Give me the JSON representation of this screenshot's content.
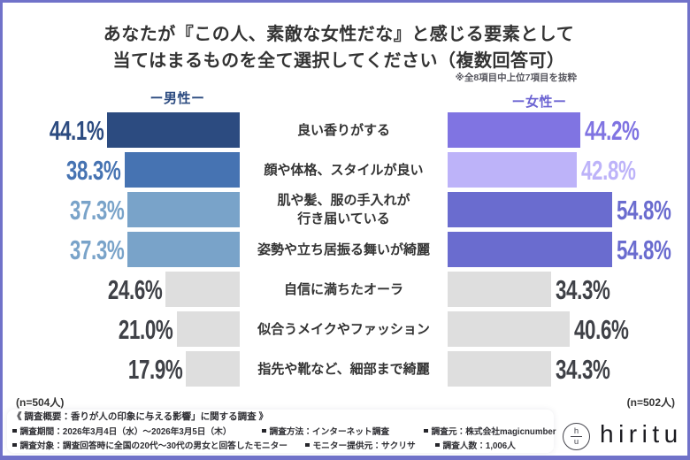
{
  "frame": {
    "border_color": "#7072C9"
  },
  "title": {
    "lines": [
      "あなたが『この人、素敵な女性だな』と感じる要素として",
      "当てはまるものを全て選択してください（複数回答可）"
    ],
    "note": "※全8項目中上位7項目を抜粋"
  },
  "chart_data": {
    "type": "bar",
    "orientation": "horizontal-diverging",
    "unit": "%",
    "categories": [
      "良い香りがする",
      "顔や体格、スタイルが良い",
      "肌や髪、服の手入れが\n行き届いている",
      "姿勢や立ち居振る舞いが綺麗",
      "自信に満ちたオーラ",
      "似合うメイクやファッション",
      "指先や靴など、細部まで綺麗"
    ],
    "series": [
      {
        "name": "ー男性ー",
        "header_color": "#2C4B80",
        "sample_label": "(n=504人)",
        "values": [
          44.1,
          38.3,
          37.3,
          37.3,
          24.6,
          21.0,
          17.9
        ],
        "value_labels": [
          "44.1%",
          "38.3%",
          "37.3%",
          "37.3%",
          "24.6%",
          "21.0%",
          "17.9%"
        ],
        "bar_colors": [
          "#2C4B80",
          "#4673B2",
          "#79A3C9",
          "#79A3C9",
          "#DEDEDE",
          "#DEDEDE",
          "#DEDEDE"
        ],
        "value_label_colors": [
          "#2C4B80",
          "#4673B2",
          "#79A3C9",
          "#79A3C9",
          "#3F4147",
          "#3F4147",
          "#3F4147"
        ]
      },
      {
        "name": "ー女性ー",
        "header_color": "#6B63D2",
        "sample_label": "(n=502人)",
        "values": [
          44.2,
          42.8,
          54.8,
          54.8,
          34.3,
          40.6,
          34.3
        ],
        "value_labels": [
          "44.2%",
          "42.8%",
          "54.8%",
          "54.8%",
          "34.3%",
          "40.6%",
          "34.3%"
        ],
        "bar_colors": [
          "#8074E2",
          "#BDB3F9",
          "#6A6CCF",
          "#6A6CCF",
          "#DEDEDE",
          "#DEDEDE",
          "#DEDEDE"
        ],
        "value_label_colors": [
          "#8074E2",
          "#BDB3F9",
          "#6A6CCF",
          "#6A6CCF",
          "#3F4147",
          "#3F4147",
          "#3F4147"
        ]
      }
    ]
  },
  "footer": {
    "survey_title": "《 調査概要：香りが人の印象に与える影響」に関する調査 》",
    "rows": [
      {
        "items": [
          {
            "text": "調査期間：2026年3月4日（水）〜2026年3月5日（木）"
          },
          {
            "text": "調査方法：インターネット調査"
          },
          {
            "text": "調査元：株式会社magicnumber"
          }
        ]
      },
      {
        "items": [
          {
            "text": "調査対象：調査回答時に全国の20代〜30代の男女と回答したモニター"
          },
          {
            "text": "モニター提供元：サクリサ"
          },
          {
            "text": "調査人数：1,006人"
          }
        ]
      }
    ]
  },
  "logo": {
    "text": "hiritu",
    "mark_top": "h",
    "mark_bottom": "u"
  }
}
